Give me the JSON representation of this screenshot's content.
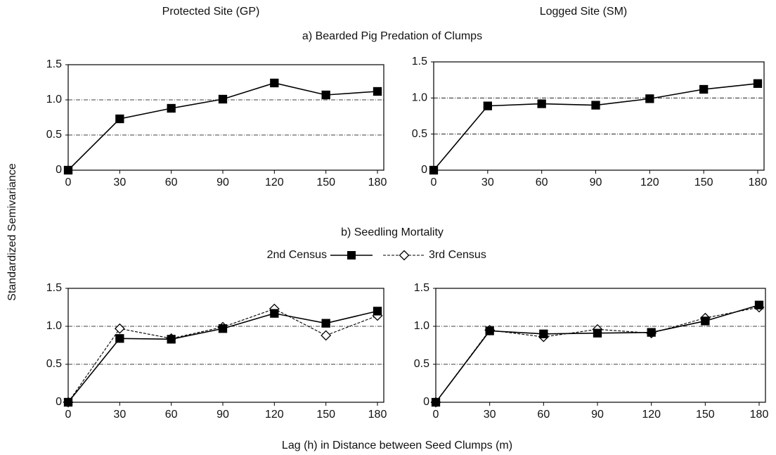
{
  "figure": {
    "columns": [
      "Protected Site (GP)",
      "Logged Site (SM)"
    ],
    "rows": [
      "a) Bearded Pig Predation of Clumps",
      "b) Seedling Mortality"
    ],
    "y_label": "Standardized Semivariance",
    "x_label": "Lag (h) in Distance between Seed Clumps (m)"
  },
  "chart_data": [
    {
      "type": "line",
      "x": [
        0,
        30,
        60,
        90,
        120,
        150,
        180
      ],
      "values": [
        0,
        0.73,
        0.88,
        1.01,
        1.24,
        1.07,
        1.12
      ],
      "color": "#000",
      "line_style": "solid",
      "marker": "square",
      "marker_fill": "#000",
      "xlim": [
        0,
        180
      ],
      "xticks": [
        0,
        30,
        60,
        90,
        120,
        150,
        180
      ],
      "ylim": [
        0,
        1.5
      ],
      "yticks": [
        0,
        0.5,
        {
          "value": 1,
          "label": "1.0"
        },
        1.5
      ],
      "grid": true
    },
    {
      "type": "line",
      "x": [
        0,
        30,
        60,
        90,
        120,
        150,
        180
      ],
      "values": [
        0,
        0.89,
        0.92,
        0.9,
        0.99,
        1.12,
        1.2
      ],
      "color": "#000",
      "line_style": "solid",
      "marker": "square",
      "marker_fill": "#000",
      "xlim": [
        0,
        180
      ],
      "xticks": [
        0,
        30,
        60,
        90,
        120,
        150,
        180
      ],
      "ylim": [
        0,
        1.5
      ],
      "yticks": [
        0,
        0.5,
        {
          "value": 1,
          "label": "1.0"
        },
        1.5
      ],
      "grid": true
    },
    {
      "type": "line",
      "x": [
        0,
        30,
        60,
        90,
        120,
        150,
        180
      ],
      "series": [
        {
          "name": "2nd Census",
          "color": "#000",
          "line_style": "solid",
          "marker": "square",
          "marker_fill": "#000",
          "values": [
            0,
            0.84,
            0.83,
            0.97,
            1.17,
            1.04,
            1.2
          ]
        },
        {
          "name": "3rd Census",
          "color": "#000",
          "line_style": "dashed",
          "marker": "diamond",
          "marker_fill": "#fff",
          "values": [
            0,
            0.97,
            0.84,
            0.99,
            1.23,
            0.88,
            1.14
          ]
        }
      ],
      "xlim": [
        0,
        180
      ],
      "xticks": [
        0,
        30,
        60,
        90,
        120,
        150,
        180
      ],
      "ylim": [
        0,
        1.5
      ],
      "yticks": [
        0,
        0.5,
        {
          "value": 1,
          "label": "1.0"
        },
        1.5
      ],
      "grid": true
    },
    {
      "type": "line",
      "x": [
        0,
        30,
        60,
        90,
        120,
        150,
        180
      ],
      "series": [
        {
          "color": "#000",
          "line_style": "solid",
          "marker": "square",
          "marker_fill": "#000",
          "values": [
            0,
            0.94,
            0.9,
            0.91,
            0.92,
            1.07,
            1.28
          ]
        },
        {
          "color": "#000",
          "line_style": "dashed",
          "marker": "diamond",
          "marker_fill": "#fff",
          "values": [
            0,
            0.95,
            0.86,
            0.96,
            0.91,
            1.11,
            1.25
          ]
        }
      ],
      "xlim": [
        0,
        180
      ],
      "xticks": [
        0,
        30,
        60,
        90,
        120,
        150,
        180
      ],
      "ylim": [
        0,
        1.5
      ],
      "yticks": [
        0,
        0.5,
        {
          "value": 1,
          "label": "1.0"
        },
        1.5
      ],
      "grid": true
    }
  ]
}
